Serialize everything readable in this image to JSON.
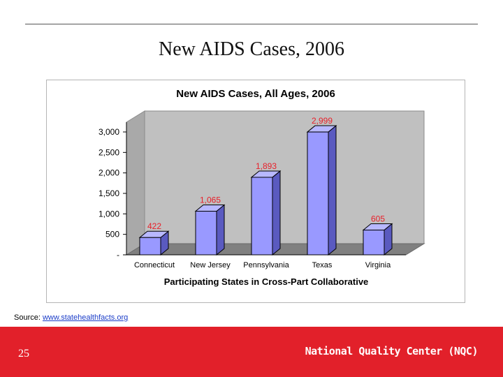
{
  "slide": {
    "title": "New AIDS Cases, 2006",
    "source_label": "Source: ",
    "source_link": "www.statehealthfacts.org",
    "page_number": "25",
    "organization": "National Quality Center (NQC)"
  },
  "colors": {
    "bar_front": "#9999ff",
    "bar_top": "#b8b8ff",
    "bar_side": "#5a5ac0",
    "plot_wall": "#c0c0c0",
    "floor": "#808080",
    "value_label": "#e8202a",
    "footer": "#e2202a"
  },
  "chart_data": {
    "type": "bar",
    "title": "New AIDS Cases, All Ages, 2006",
    "xlabel": "Participating States in Cross-Part Collaborative",
    "ylabel": "",
    "categories": [
      "Connecticut",
      "New Jersey",
      "Pennsylvania",
      "Texas",
      "Virginia"
    ],
    "values": [
      422,
      1065,
      1893,
      2999,
      605
    ],
    "value_labels": [
      "422",
      "1,065",
      "1,893",
      "2,999",
      "605"
    ],
    "ylim": [
      0,
      3000
    ],
    "y_ticks": [
      0,
      500,
      1000,
      1500,
      2000,
      2500,
      3000
    ],
    "y_tick_labels": [
      "-",
      "500",
      "1,000",
      "1,500",
      "2,000",
      "2,500",
      "3,000"
    ],
    "style": "3d-column",
    "grid": false,
    "legend": "none"
  }
}
